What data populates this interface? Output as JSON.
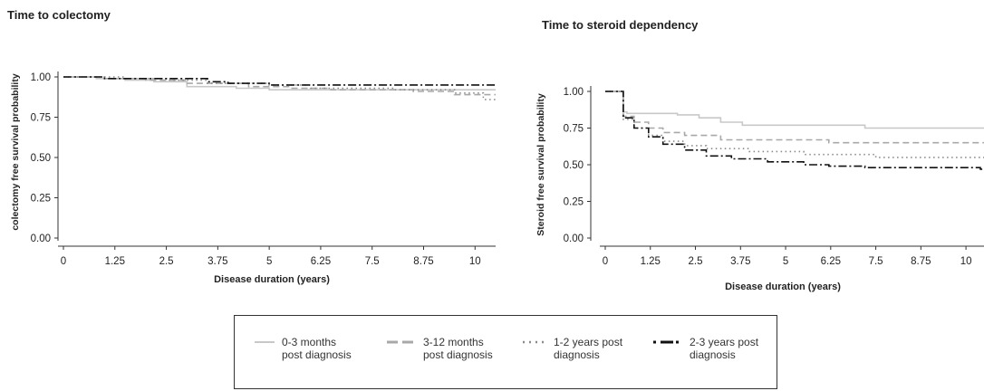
{
  "chart_data": [
    {
      "type": "line",
      "title": "Time to colectomy",
      "xlabel": "Disease duration (years)",
      "ylabel": "colectomy free survival probability",
      "x_ticks": [
        "0",
        "1.25",
        "2.5",
        "3.75",
        "5",
        "6.25",
        "7.5",
        "8.75",
        "10"
      ],
      "y_ticks": [
        "0.00",
        "0.25",
        "0.50",
        "0.75",
        "1.00"
      ],
      "xlim": [
        0,
        10.5
      ],
      "ylim": [
        0,
        1
      ],
      "series": [
        {
          "name": "0-3 months post diagnosis",
          "step": [
            [
              0,
              1.0
            ],
            [
              0.8,
              0.99
            ],
            [
              1.5,
              0.98
            ],
            [
              2.2,
              0.97
            ],
            [
              3.0,
              0.94
            ],
            [
              4.2,
              0.93
            ],
            [
              5.0,
              0.92
            ],
            [
              10.6,
              0.92
            ]
          ]
        },
        {
          "name": "3-12 months post diagnosis",
          "step": [
            [
              0,
              1.0
            ],
            [
              1.0,
              0.99
            ],
            [
              2.0,
              0.98
            ],
            [
              3.0,
              0.96
            ],
            [
              4.5,
              0.94
            ],
            [
              5.5,
              0.93
            ],
            [
              6.5,
              0.92
            ],
            [
              8.5,
              0.91
            ],
            [
              9.5,
              0.89
            ],
            [
              10.6,
              0.89
            ]
          ]
        },
        {
          "name": "1-2 years post diagnosis",
          "step": [
            [
              0,
              1.0
            ],
            [
              1.5,
              0.99
            ],
            [
              2.5,
              0.98
            ],
            [
              3.5,
              0.96
            ],
            [
              5.0,
              0.95
            ],
            [
              6.0,
              0.93
            ],
            [
              8.0,
              0.92
            ],
            [
              9.5,
              0.9
            ],
            [
              10.2,
              0.86
            ],
            [
              10.6,
              0.86
            ]
          ]
        },
        {
          "name": "2-3 years post diagnosis",
          "step": [
            [
              0,
              1.0
            ],
            [
              1.0,
              0.99
            ],
            [
              2.0,
              0.99
            ],
            [
              3.5,
              0.97
            ],
            [
              4.0,
              0.96
            ],
            [
              5.0,
              0.95
            ],
            [
              10.6,
              0.95
            ]
          ]
        }
      ]
    },
    {
      "type": "line",
      "title": "Time to steroid dependency",
      "xlabel": "Disease duration (years)",
      "ylabel": "Steroid free survival probability",
      "x_ticks": [
        "0",
        "1.25",
        "2.5",
        "3.75",
        "5",
        "6.25",
        "7.5",
        "8.75",
        "10"
      ],
      "y_ticks": [
        "0.00",
        "0.25",
        "0.50",
        "0.75",
        "1.00"
      ],
      "xlim": [
        0,
        10.5
      ],
      "ylim": [
        0,
        1
      ],
      "series": [
        {
          "name": "0-3 months post diagnosis",
          "step": [
            [
              0,
              1.0
            ],
            [
              0.5,
              0.86
            ],
            [
              0.6,
              0.85
            ],
            [
              2.0,
              0.84
            ],
            [
              2.6,
              0.82
            ],
            [
              3.2,
              0.79
            ],
            [
              3.8,
              0.77
            ],
            [
              7.2,
              0.75
            ],
            [
              10.6,
              0.75
            ]
          ]
        },
        {
          "name": "3-12 months post diagnosis",
          "step": [
            [
              0,
              1.0
            ],
            [
              0.5,
              0.83
            ],
            [
              0.8,
              0.79
            ],
            [
              1.2,
              0.75
            ],
            [
              1.6,
              0.72
            ],
            [
              2.2,
              0.7
            ],
            [
              3.2,
              0.67
            ],
            [
              6.2,
              0.65
            ],
            [
              10.6,
              0.65
            ]
          ]
        },
        {
          "name": "1-2 years post diagnosis",
          "step": [
            [
              0,
              1.0
            ],
            [
              0.5,
              0.81
            ],
            [
              0.8,
              0.75
            ],
            [
              1.2,
              0.7
            ],
            [
              1.6,
              0.66
            ],
            [
              2.2,
              0.63
            ],
            [
              2.8,
              0.61
            ],
            [
              4.0,
              0.59
            ],
            [
              5.5,
              0.57
            ],
            [
              7.5,
              0.55
            ],
            [
              10.6,
              0.55
            ]
          ]
        },
        {
          "name": "2-3 years post diagnosis",
          "step": [
            [
              0,
              1.0
            ],
            [
              0.5,
              0.82
            ],
            [
              0.8,
              0.75
            ],
            [
              1.2,
              0.69
            ],
            [
              1.6,
              0.64
            ],
            [
              2.2,
              0.6
            ],
            [
              2.8,
              0.56
            ],
            [
              3.5,
              0.54
            ],
            [
              4.5,
              0.52
            ],
            [
              5.5,
              0.5
            ],
            [
              6.2,
              0.49
            ],
            [
              7.2,
              0.48
            ],
            [
              10.4,
              0.47
            ],
            [
              10.6,
              0.47
            ]
          ]
        }
      ]
    }
  ],
  "legend": {
    "items": [
      {
        "label": "0-3 months\npost diagnosis",
        "style": "solid",
        "color": "#c8c8c8"
      },
      {
        "label": "3-12 months\npost diagnosis",
        "style": "dashed",
        "color": "#a8a8a8"
      },
      {
        "label": "1-2 years post\ndiagnosis",
        "style": "dotted",
        "color": "#8a8a8a"
      },
      {
        "label": "2-3 years post\ndiagnosis",
        "style": "dashdot",
        "color": "#111111"
      }
    ]
  }
}
